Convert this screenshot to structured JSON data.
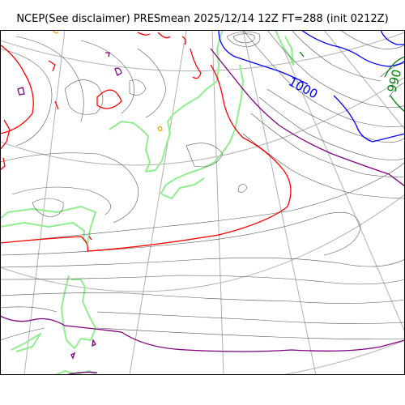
{
  "title": "NCEP(See disclaimer) PRESmean 2025/12/14 12Z FT=288 (init 0212Z)",
  "isobar_labels": [
    {
      "text": "1000",
      "color": "#0000ff"
    },
    {
      "text": "990",
      "color": "#008000"
    }
  ],
  "colors": {
    "coast": "#90ee90",
    "grid": "#b0b0b0",
    "contour": "#555555",
    "red_isobar": "#ff0000",
    "purple_isobar": "#800080",
    "blue_isobar": "#0000ff",
    "green_isobar": "#008000",
    "orange_isobar": "#ffa500"
  }
}
